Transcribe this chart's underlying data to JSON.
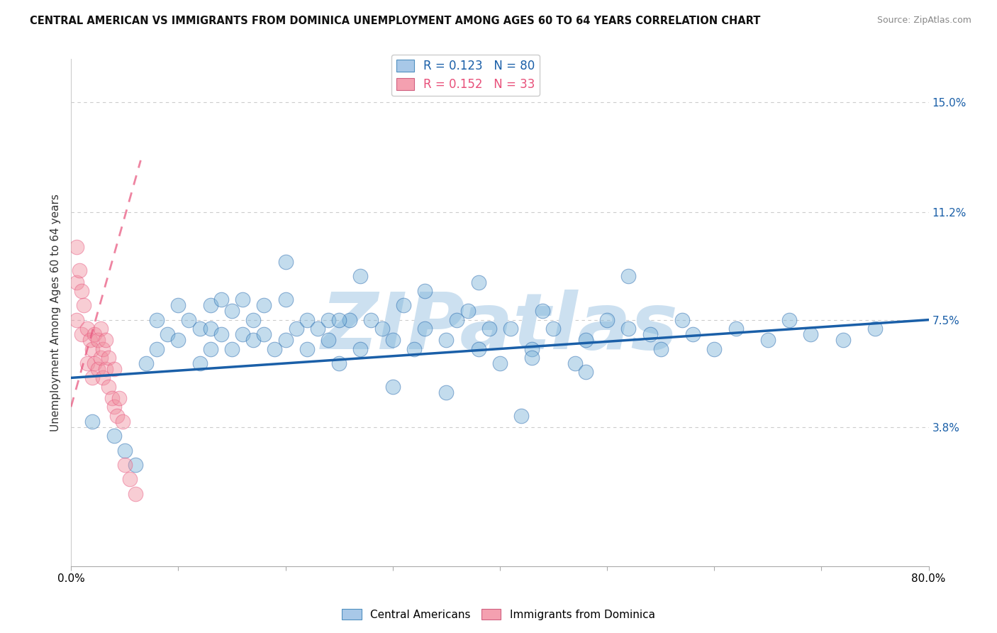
{
  "title": "CENTRAL AMERICAN VS IMMIGRANTS FROM DOMINICA UNEMPLOYMENT AMONG AGES 60 TO 64 YEARS CORRELATION CHART",
  "source": "Source: ZipAtlas.com",
  "ylabel": "Unemployment Among Ages 60 to 64 years",
  "xlim": [
    0.0,
    0.8
  ],
  "ylim": [
    -0.01,
    0.165
  ],
  "xticks": [
    0.0,
    0.1,
    0.2,
    0.3,
    0.4,
    0.5,
    0.6,
    0.7,
    0.8
  ],
  "xticklabels": [
    "0.0%",
    "",
    "",
    "",
    "",
    "",
    "",
    "",
    "80.0%"
  ],
  "ytick_positions": [
    0.038,
    0.075,
    0.112,
    0.15
  ],
  "ytick_labels": [
    "3.8%",
    "7.5%",
    "11.2%",
    "15.0%"
  ],
  "legend_entries": [
    {
      "label": "R = 0.123   N = 80",
      "color": "#a8c8e8"
    },
    {
      "label": "R = 0.152   N = 33",
      "color": "#f4a0b0"
    }
  ],
  "blue_color": "#7ab3d9",
  "pink_color": "#f090a0",
  "blue_line_color": "#1a5fa8",
  "pink_line_color": "#e8507a",
  "watermark": "ZIPatlas",
  "watermark_color": "#cce0f0",
  "background_color": "#ffffff",
  "blue_scatter_x": [
    0.02,
    0.04,
    0.05,
    0.06,
    0.07,
    0.08,
    0.08,
    0.09,
    0.1,
    0.1,
    0.11,
    0.12,
    0.12,
    0.13,
    0.13,
    0.13,
    0.14,
    0.14,
    0.15,
    0.15,
    0.16,
    0.16,
    0.17,
    0.17,
    0.18,
    0.18,
    0.19,
    0.2,
    0.2,
    0.21,
    0.22,
    0.22,
    0.23,
    0.24,
    0.24,
    0.25,
    0.26,
    0.27,
    0.28,
    0.29,
    0.3,
    0.31,
    0.32,
    0.33,
    0.35,
    0.36,
    0.37,
    0.38,
    0.39,
    0.4,
    0.41,
    0.43,
    0.44,
    0.45,
    0.47,
    0.48,
    0.5,
    0.52,
    0.52,
    0.54,
    0.55,
    0.57,
    0.58,
    0.6,
    0.62,
    0.65,
    0.67,
    0.69,
    0.72,
    0.75,
    0.27,
    0.33,
    0.38,
    0.43,
    0.48,
    0.2,
    0.25,
    0.3,
    0.35,
    0.42
  ],
  "blue_scatter_y": [
    0.04,
    0.035,
    0.03,
    0.025,
    0.06,
    0.065,
    0.075,
    0.07,
    0.068,
    0.08,
    0.075,
    0.06,
    0.072,
    0.065,
    0.072,
    0.08,
    0.07,
    0.082,
    0.065,
    0.078,
    0.07,
    0.082,
    0.068,
    0.075,
    0.07,
    0.08,
    0.065,
    0.068,
    0.082,
    0.072,
    0.075,
    0.065,
    0.072,
    0.068,
    0.075,
    0.06,
    0.075,
    0.065,
    0.075,
    0.072,
    0.068,
    0.08,
    0.065,
    0.072,
    0.068,
    0.075,
    0.078,
    0.065,
    0.072,
    0.06,
    0.072,
    0.065,
    0.078,
    0.072,
    0.06,
    0.068,
    0.075,
    0.072,
    0.09,
    0.07,
    0.065,
    0.075,
    0.07,
    0.065,
    0.072,
    0.068,
    0.075,
    0.07,
    0.068,
    0.072,
    0.09,
    0.085,
    0.088,
    0.062,
    0.057,
    0.095,
    0.075,
    0.052,
    0.05,
    0.042
  ],
  "pink_scatter_x": [
    0.005,
    0.005,
    0.005,
    0.008,
    0.01,
    0.01,
    0.012,
    0.015,
    0.015,
    0.018,
    0.02,
    0.02,
    0.022,
    0.022,
    0.025,
    0.025,
    0.028,
    0.028,
    0.03,
    0.03,
    0.032,
    0.032,
    0.035,
    0.035,
    0.038,
    0.04,
    0.04,
    0.043,
    0.045,
    0.048,
    0.05,
    0.055,
    0.06
  ],
  "pink_scatter_y": [
    0.1,
    0.088,
    0.075,
    0.092,
    0.085,
    0.07,
    0.08,
    0.072,
    0.06,
    0.068,
    0.065,
    0.055,
    0.06,
    0.07,
    0.068,
    0.058,
    0.062,
    0.072,
    0.065,
    0.055,
    0.058,
    0.068,
    0.062,
    0.052,
    0.048,
    0.058,
    0.045,
    0.042,
    0.048,
    0.04,
    0.025,
    0.02,
    0.015
  ],
  "blue_trend_x0": 0.0,
  "blue_trend_y0": 0.055,
  "blue_trend_x1": 0.8,
  "blue_trend_y1": 0.075,
  "pink_trend_x0": 0.0,
  "pink_trend_y0": 0.045,
  "pink_trend_x1": 0.065,
  "pink_trend_y1": 0.13
}
